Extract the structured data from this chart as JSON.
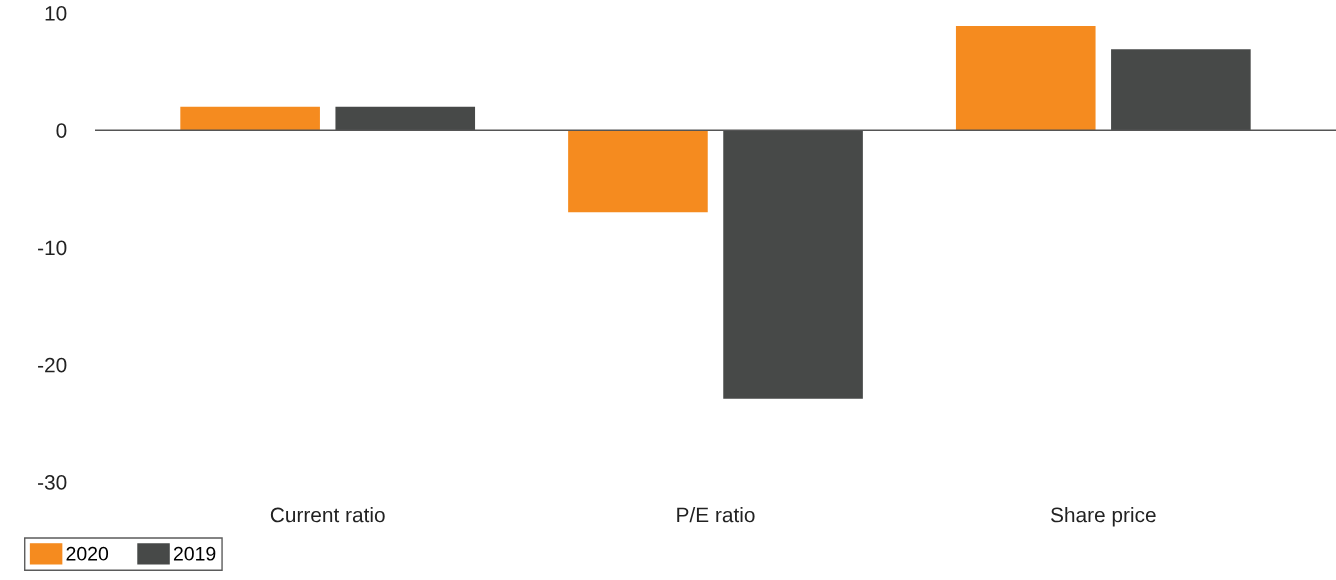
{
  "chart_data": {
    "type": "bar",
    "categories": [
      "Current ratio",
      "P/E ratio",
      "Share price"
    ],
    "series": [
      {
        "name": "2020",
        "color": "#f58b1f",
        "values": [
          2,
          -7,
          8.9
        ]
      },
      {
        "name": "2019",
        "color": "#474948",
        "values": [
          2,
          -22.9,
          6.9
        ]
      }
    ],
    "ylim": [
      -30,
      10
    ],
    "yticks": [
      -30,
      -20,
      -10,
      0,
      10
    ],
    "grid": false,
    "legend": "bottom left",
    "ref_lines": [
      {
        "axis": "y",
        "value": 0,
        "color": "#555555"
      }
    ]
  }
}
